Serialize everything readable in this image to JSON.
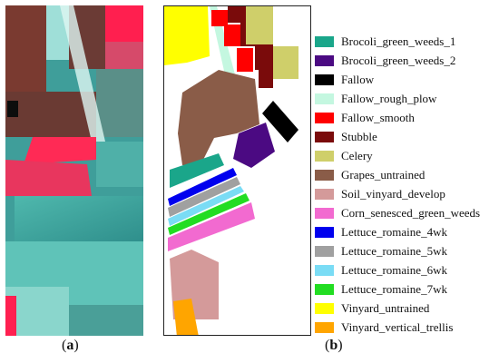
{
  "captions": {
    "a": "a",
    "b": "b"
  },
  "legend": [
    {
      "label": "Brocoli_green_weeds_1",
      "color": "#1aa68a"
    },
    {
      "label": "Brocoli_green_weeds_2",
      "color": "#4b0a82"
    },
    {
      "label": "Fallow",
      "color": "#000000"
    },
    {
      "label": "Fallow_rough_plow",
      "color": "#c4f7e0"
    },
    {
      "label": "Fallow_smooth",
      "color": "#ff0000"
    },
    {
      "label": "Stubble",
      "color": "#7a0b0b"
    },
    {
      "label": "Celery",
      "color": "#cfcf6a"
    },
    {
      "label": "Grapes_untrained",
      "color": "#8a5c48"
    },
    {
      "label": "Soil_vinyard_develop",
      "color": "#d49a9a"
    },
    {
      "label": "Corn_senesced_green_weeds",
      "color": "#f26ad0"
    },
    {
      "label": "Lettuce_romaine_4wk",
      "color": "#0000ee"
    },
    {
      "label": "Lettuce_romaine_5wk",
      "color": "#a0a0a0"
    },
    {
      "label": "Lettuce_romaine_6wk",
      "color": "#7adcf5"
    },
    {
      "label": "Lettuce_romaine_7wk",
      "color": "#22dd22"
    },
    {
      "label": "Vinyard_untrained",
      "color": "#ffff00"
    },
    {
      "label": "Vinyard_vertical_trellis",
      "color": "#ffa500"
    }
  ]
}
